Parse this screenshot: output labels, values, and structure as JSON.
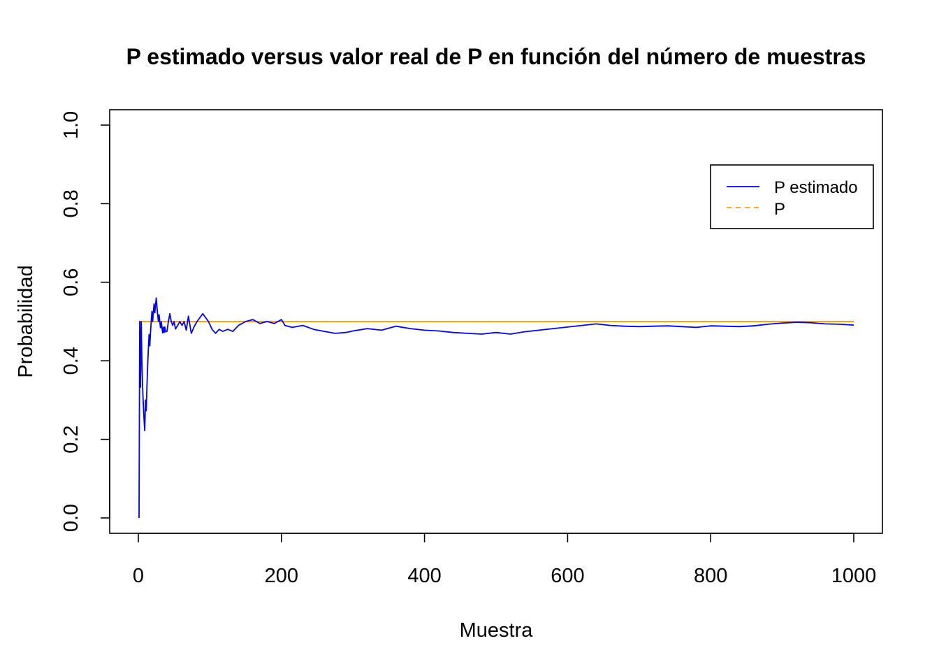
{
  "chart_data": {
    "type": "line",
    "title": "P estimado versus valor real de P en función del número de muestras",
    "xlabel": "Muestra",
    "ylabel": "Probabilidad",
    "xlim": [
      1,
      1000
    ],
    "ylim": [
      0,
      1
    ],
    "x_ticks": [
      0,
      200,
      400,
      600,
      800,
      1000
    ],
    "y_ticks": [
      0.0,
      0.2,
      0.4,
      0.6,
      0.8,
      1.0
    ],
    "x_tick_labels": [
      "0",
      "200",
      "400",
      "600",
      "800",
      "1000"
    ],
    "y_tick_labels": [
      "0.0",
      "0.2",
      "0.4",
      "0.6",
      "0.8",
      "1.0"
    ],
    "grid": false,
    "legend_position": "top-right",
    "series": [
      {
        "name": "P estimado",
        "color": "#0000ff",
        "style": "solid",
        "x": [
          1,
          2,
          3,
          4,
          5,
          6,
          7,
          8,
          9,
          10,
          11,
          12,
          13,
          14,
          15,
          16,
          17,
          18,
          19,
          20,
          21,
          22,
          23,
          24,
          25,
          26,
          27,
          28,
          29,
          30,
          31,
          32,
          33,
          34,
          35,
          36,
          37,
          38,
          40,
          42,
          44,
          46,
          48,
          50,
          52,
          55,
          58,
          61,
          64,
          67,
          70,
          74,
          78,
          82,
          86,
          90,
          94,
          98,
          103,
          108,
          113,
          118,
          125,
          132,
          140,
          150,
          160,
          170,
          180,
          190,
          200,
          205,
          215,
          230,
          245,
          260,
          275,
          290,
          300,
          320,
          340,
          360,
          380,
          400,
          420,
          440,
          460,
          480,
          500,
          520,
          540,
          560,
          580,
          600,
          620,
          640,
          660,
          680,
          700,
          720,
          740,
          760,
          780,
          800,
          820,
          840,
          860,
          880,
          900,
          920,
          940,
          960,
          980,
          1000
        ],
        "values": [
          0.0,
          0.5,
          0.333,
          0.5,
          0.4,
          0.333,
          0.286,
          0.25,
          0.222,
          0.3,
          0.273,
          0.333,
          0.385,
          0.429,
          0.467,
          0.438,
          0.471,
          0.5,
          0.526,
          0.5,
          0.524,
          0.545,
          0.522,
          0.542,
          0.56,
          0.538,
          0.519,
          0.5,
          0.517,
          0.5,
          0.484,
          0.5,
          0.485,
          0.471,
          0.486,
          0.472,
          0.486,
          0.474,
          0.475,
          0.5,
          0.52,
          0.5,
          0.49,
          0.5,
          0.481,
          0.49,
          0.5,
          0.49,
          0.5,
          0.478,
          0.514,
          0.47,
          0.487,
          0.5,
          0.51,
          0.52,
          0.51,
          0.5,
          0.48,
          0.47,
          0.48,
          0.475,
          0.48,
          0.475,
          0.49,
          0.5,
          0.505,
          0.495,
          0.5,
          0.495,
          0.505,
          0.49,
          0.485,
          0.49,
          0.48,
          0.475,
          0.47,
          0.472,
          0.476,
          0.482,
          0.478,
          0.488,
          0.482,
          0.478,
          0.476,
          0.472,
          0.47,
          0.468,
          0.472,
          0.468,
          0.474,
          0.478,
          0.482,
          0.486,
          0.49,
          0.494,
          0.49,
          0.488,
          0.487,
          0.488,
          0.489,
          0.487,
          0.485,
          0.489,
          0.488,
          0.487,
          0.489,
          0.493,
          0.496,
          0.498,
          0.497,
          0.494,
          0.493,
          0.491
        ]
      },
      {
        "name": "P",
        "color": "#ffa500",
        "style": "dashed",
        "x": [
          1,
          1000
        ],
        "values": [
          0.5,
          0.5
        ]
      }
    ]
  }
}
